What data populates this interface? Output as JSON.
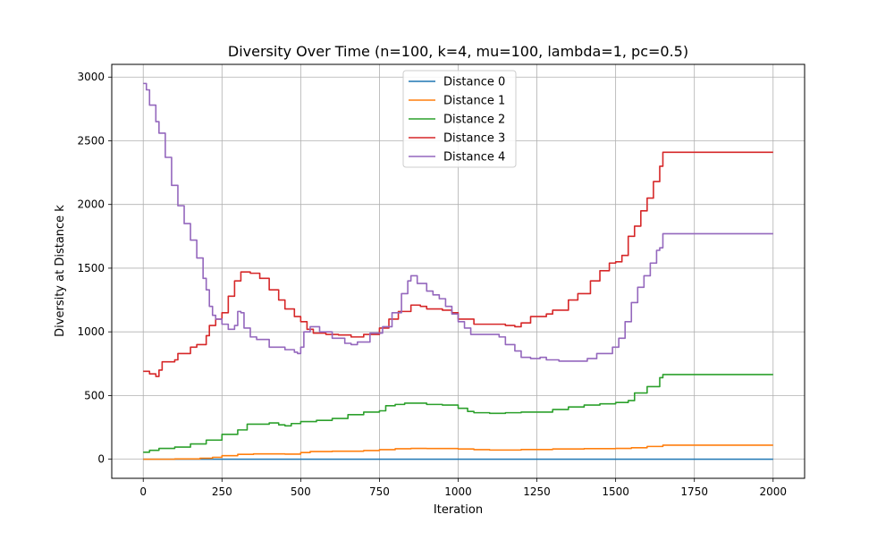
{
  "chart_data": {
    "type": "line",
    "title": "Diversity Over Time (n=100, k=4, mu=100, lambda=1, pc=0.5)",
    "xlabel": "Iteration",
    "ylabel": "Diversity at Distance k",
    "xlim": [
      -100,
      2100
    ],
    "ylim": [
      -150,
      3100
    ],
    "xticks": [
      0,
      250,
      500,
      750,
      1000,
      1250,
      1500,
      1750,
      2000
    ],
    "yticks": [
      0,
      500,
      1000,
      1500,
      2000,
      2500,
      3000
    ],
    "grid": true,
    "legend_position": "top-center",
    "series": [
      {
        "name": "Distance 0",
        "color": "#1f77b4",
        "points": [
          [
            0,
            0
          ],
          [
            2000,
            0
          ]
        ]
      },
      {
        "name": "Distance 1",
        "color": "#ff7f0e",
        "points": [
          [
            0,
            0
          ],
          [
            100,
            2
          ],
          [
            180,
            8
          ],
          [
            220,
            15
          ],
          [
            250,
            28
          ],
          [
            300,
            38
          ],
          [
            350,
            42
          ],
          [
            400,
            42
          ],
          [
            450,
            40
          ],
          [
            500,
            52
          ],
          [
            530,
            60
          ],
          [
            600,
            63
          ],
          [
            700,
            68
          ],
          [
            750,
            75
          ],
          [
            800,
            82
          ],
          [
            850,
            85
          ],
          [
            900,
            84
          ],
          [
            1000,
            80
          ],
          [
            1050,
            75
          ],
          [
            1100,
            72
          ],
          [
            1200,
            76
          ],
          [
            1300,
            80
          ],
          [
            1400,
            83
          ],
          [
            1500,
            85
          ],
          [
            1550,
            90
          ],
          [
            1600,
            100
          ],
          [
            1650,
            110
          ],
          [
            2000,
            110
          ]
        ]
      },
      {
        "name": "Distance 2",
        "color": "#2ca02c",
        "points": [
          [
            0,
            55
          ],
          [
            20,
            70
          ],
          [
            50,
            85
          ],
          [
            100,
            95
          ],
          [
            150,
            120
          ],
          [
            200,
            150
          ],
          [
            250,
            195
          ],
          [
            300,
            230
          ],
          [
            330,
            275
          ],
          [
            400,
            285
          ],
          [
            430,
            270
          ],
          [
            450,
            262
          ],
          [
            470,
            280
          ],
          [
            500,
            295
          ],
          [
            550,
            305
          ],
          [
            600,
            320
          ],
          [
            650,
            350
          ],
          [
            700,
            370
          ],
          [
            750,
            380
          ],
          [
            770,
            420
          ],
          [
            800,
            430
          ],
          [
            830,
            440
          ],
          [
            900,
            430
          ],
          [
            950,
            425
          ],
          [
            1000,
            400
          ],
          [
            1030,
            375
          ],
          [
            1050,
            365
          ],
          [
            1100,
            360
          ],
          [
            1150,
            365
          ],
          [
            1200,
            370
          ],
          [
            1250,
            370
          ],
          [
            1300,
            390
          ],
          [
            1350,
            410
          ],
          [
            1400,
            425
          ],
          [
            1450,
            435
          ],
          [
            1500,
            445
          ],
          [
            1540,
            460
          ],
          [
            1560,
            520
          ],
          [
            1600,
            570
          ],
          [
            1640,
            640
          ],
          [
            1650,
            665
          ],
          [
            2000,
            665
          ]
        ]
      },
      {
        "name": "Distance 3",
        "color": "#d62728",
        "points": [
          [
            0,
            690
          ],
          [
            20,
            670
          ],
          [
            40,
            650
          ],
          [
            50,
            700
          ],
          [
            60,
            765
          ],
          [
            100,
            780
          ],
          [
            110,
            830
          ],
          [
            150,
            880
          ],
          [
            170,
            900
          ],
          [
            200,
            970
          ],
          [
            210,
            1050
          ],
          [
            230,
            1100
          ],
          [
            250,
            1150
          ],
          [
            270,
            1280
          ],
          [
            290,
            1400
          ],
          [
            310,
            1470
          ],
          [
            340,
            1460
          ],
          [
            370,
            1420
          ],
          [
            400,
            1330
          ],
          [
            430,
            1250
          ],
          [
            450,
            1180
          ],
          [
            480,
            1120
          ],
          [
            500,
            1080
          ],
          [
            520,
            1020
          ],
          [
            540,
            990
          ],
          [
            580,
            980
          ],
          [
            620,
            975
          ],
          [
            660,
            960
          ],
          [
            700,
            980
          ],
          [
            750,
            1030
          ],
          [
            780,
            1100
          ],
          [
            810,
            1160
          ],
          [
            850,
            1210
          ],
          [
            880,
            1200
          ],
          [
            900,
            1180
          ],
          [
            950,
            1170
          ],
          [
            980,
            1150
          ],
          [
            1000,
            1100
          ],
          [
            1050,
            1060
          ],
          [
            1100,
            1060
          ],
          [
            1150,
            1050
          ],
          [
            1180,
            1040
          ],
          [
            1200,
            1070
          ],
          [
            1230,
            1120
          ],
          [
            1280,
            1140
          ],
          [
            1300,
            1170
          ],
          [
            1350,
            1250
          ],
          [
            1380,
            1300
          ],
          [
            1420,
            1400
          ],
          [
            1450,
            1480
          ],
          [
            1480,
            1540
          ],
          [
            1500,
            1550
          ],
          [
            1520,
            1600
          ],
          [
            1540,
            1750
          ],
          [
            1560,
            1830
          ],
          [
            1580,
            1950
          ],
          [
            1600,
            2050
          ],
          [
            1620,
            2180
          ],
          [
            1640,
            2300
          ],
          [
            1650,
            2410
          ],
          [
            2000,
            2410
          ]
        ]
      },
      {
        "name": "Distance 4",
        "color": "#9467bd",
        "points": [
          [
            0,
            2950
          ],
          [
            10,
            2900
          ],
          [
            20,
            2780
          ],
          [
            40,
            2650
          ],
          [
            50,
            2560
          ],
          [
            70,
            2370
          ],
          [
            90,
            2150
          ],
          [
            110,
            1990
          ],
          [
            130,
            1850
          ],
          [
            150,
            1720
          ],
          [
            170,
            1580
          ],
          [
            190,
            1420
          ],
          [
            200,
            1330
          ],
          [
            210,
            1200
          ],
          [
            220,
            1130
          ],
          [
            230,
            1100
          ],
          [
            250,
            1060
          ],
          [
            270,
            1020
          ],
          [
            290,
            1050
          ],
          [
            300,
            1160
          ],
          [
            310,
            1150
          ],
          [
            320,
            1030
          ],
          [
            340,
            960
          ],
          [
            360,
            940
          ],
          [
            400,
            880
          ],
          [
            450,
            860
          ],
          [
            480,
            840
          ],
          [
            490,
            830
          ],
          [
            500,
            880
          ],
          [
            510,
            1000
          ],
          [
            530,
            1040
          ],
          [
            560,
            1000
          ],
          [
            600,
            950
          ],
          [
            640,
            910
          ],
          [
            660,
            900
          ],
          [
            680,
            920
          ],
          [
            720,
            990
          ],
          [
            760,
            1040
          ],
          [
            790,
            1150
          ],
          [
            820,
            1300
          ],
          [
            840,
            1400
          ],
          [
            850,
            1440
          ],
          [
            870,
            1380
          ],
          [
            900,
            1320
          ],
          [
            920,
            1290
          ],
          [
            940,
            1260
          ],
          [
            960,
            1200
          ],
          [
            980,
            1140
          ],
          [
            1000,
            1080
          ],
          [
            1020,
            1030
          ],
          [
            1040,
            980
          ],
          [
            1100,
            980
          ],
          [
            1130,
            960
          ],
          [
            1150,
            900
          ],
          [
            1180,
            850
          ],
          [
            1200,
            800
          ],
          [
            1230,
            790
          ],
          [
            1260,
            800
          ],
          [
            1280,
            780
          ],
          [
            1320,
            770
          ],
          [
            1380,
            770
          ],
          [
            1410,
            790
          ],
          [
            1440,
            830
          ],
          [
            1470,
            830
          ],
          [
            1490,
            880
          ],
          [
            1510,
            950
          ],
          [
            1530,
            1080
          ],
          [
            1550,
            1230
          ],
          [
            1570,
            1350
          ],
          [
            1590,
            1440
          ],
          [
            1610,
            1540
          ],
          [
            1630,
            1640
          ],
          [
            1640,
            1660
          ],
          [
            1650,
            1770
          ],
          [
            2000,
            1770
          ]
        ]
      }
    ]
  }
}
